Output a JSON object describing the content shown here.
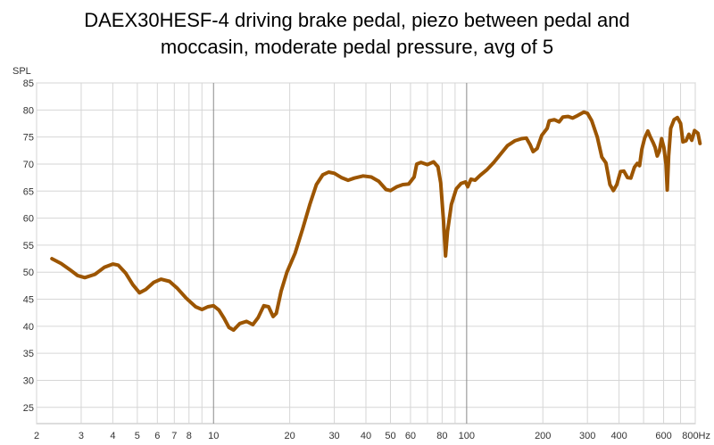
{
  "chart_data": {
    "type": "line",
    "title": "DAEX30HESF-4 driving brake pedal, piezo between pedal and\nmoccasin, moderate pedal pressure, avg of 5",
    "xlabel": "",
    "ylabel": "SPL",
    "x_scale": "log",
    "xlim": [
      2,
      800
    ],
    "ylim": [
      22,
      85
    ],
    "y_ticks": [
      25,
      30,
      35,
      40,
      45,
      50,
      55,
      60,
      65,
      70,
      75,
      80,
      85
    ],
    "x_ticks": [
      {
        "value": 2,
        "label": "2"
      },
      {
        "value": 3,
        "label": "3"
      },
      {
        "value": 4,
        "label": "4"
      },
      {
        "value": 5,
        "label": "5"
      },
      {
        "value": 6,
        "label": "6"
      },
      {
        "value": 7,
        "label": "7"
      },
      {
        "value": 8,
        "label": "8"
      },
      {
        "value": 10,
        "label": "10"
      },
      {
        "value": 20,
        "label": "20"
      },
      {
        "value": 30,
        "label": "30"
      },
      {
        "value": 40,
        "label": "40"
      },
      {
        "value": 50,
        "label": "50"
      },
      {
        "value": 60,
        "label": "60"
      },
      {
        "value": 80,
        "label": "80"
      },
      {
        "value": 100,
        "label": "100"
      },
      {
        "value": 200,
        "label": "200"
      },
      {
        "value": 300,
        "label": "300"
      },
      {
        "value": 400,
        "label": "400"
      },
      {
        "value": 600,
        "label": "600"
      },
      {
        "value": 800,
        "label": "800Hz"
      }
    ],
    "grid": true,
    "line_color": "#9c5500",
    "series": [
      {
        "name": "",
        "points": [
          [
            2.3,
            52.5
          ],
          [
            2.5,
            51.6
          ],
          [
            2.7,
            50.5
          ],
          [
            2.9,
            49.4
          ],
          [
            3.1,
            49.0
          ],
          [
            3.4,
            49.6
          ],
          [
            3.7,
            50.9
          ],
          [
            4.0,
            51.5
          ],
          [
            4.2,
            51.3
          ],
          [
            4.5,
            49.8
          ],
          [
            4.8,
            47.7
          ],
          [
            5.1,
            46.2
          ],
          [
            5.4,
            46.8
          ],
          [
            5.8,
            48.1
          ],
          [
            6.2,
            48.7
          ],
          [
            6.7,
            48.3
          ],
          [
            7.2,
            47.0
          ],
          [
            7.8,
            45.2
          ],
          [
            8.5,
            43.6
          ],
          [
            9.0,
            43.1
          ],
          [
            9.5,
            43.6
          ],
          [
            10.0,
            43.8
          ],
          [
            10.5,
            43.0
          ],
          [
            11.0,
            41.5
          ],
          [
            11.5,
            39.8
          ],
          [
            12.0,
            39.3
          ],
          [
            12.7,
            40.5
          ],
          [
            13.5,
            40.9
          ],
          [
            14.3,
            40.3
          ],
          [
            15.0,
            41.6
          ],
          [
            15.8,
            43.8
          ],
          [
            16.5,
            43.6
          ],
          [
            17.2,
            41.8
          ],
          [
            17.7,
            42.4
          ],
          [
            18.5,
            46.5
          ],
          [
            19.5,
            50.0
          ],
          [
            21.0,
            53.5
          ],
          [
            22.5,
            58.0
          ],
          [
            24.0,
            62.5
          ],
          [
            25.5,
            66.2
          ],
          [
            27.0,
            68.0
          ],
          [
            28.5,
            68.5
          ],
          [
            30.0,
            68.3
          ],
          [
            32.0,
            67.5
          ],
          [
            34.0,
            67.0
          ],
          [
            36.0,
            67.4
          ],
          [
            39.0,
            67.8
          ],
          [
            42.0,
            67.6
          ],
          [
            45.0,
            66.8
          ],
          [
            48.0,
            65.3
          ],
          [
            50.0,
            65.1
          ],
          [
            53.0,
            65.8
          ],
          [
            56.0,
            66.2
          ],
          [
            59.0,
            66.3
          ],
          [
            62.0,
            67.6
          ],
          [
            63.5,
            70.0
          ],
          [
            66.0,
            70.3
          ],
          [
            70.0,
            69.9
          ],
          [
            74.0,
            70.4
          ],
          [
            77.0,
            69.5
          ],
          [
            79.0,
            66.5
          ],
          [
            81.0,
            59.5
          ],
          [
            82.5,
            53.0
          ],
          [
            84.0,
            57.5
          ],
          [
            87.0,
            62.5
          ],
          [
            91.0,
            65.4
          ],
          [
            95.0,
            66.4
          ],
          [
            99.0,
            66.7
          ],
          [
            101.0,
            65.8
          ],
          [
            104.0,
            67.2
          ],
          [
            108.0,
            67.0
          ],
          [
            113.0,
            67.9
          ],
          [
            120.0,
            68.9
          ],
          [
            128.0,
            70.3
          ],
          [
            136.0,
            71.8
          ],
          [
            145.0,
            73.4
          ],
          [
            155.0,
            74.3
          ],
          [
            165.0,
            74.7
          ],
          [
            172.0,
            74.8
          ],
          [
            178.0,
            73.6
          ],
          [
            183.0,
            72.3
          ],
          [
            190.0,
            72.9
          ],
          [
            198.0,
            75.3
          ],
          [
            208.0,
            76.6
          ],
          [
            212.0,
            78.0
          ],
          [
            222.0,
            78.2
          ],
          [
            232.0,
            77.8
          ],
          [
            240.0,
            78.7
          ],
          [
            252.0,
            78.8
          ],
          [
            262.0,
            78.5
          ],
          [
            275.0,
            79.0
          ],
          [
            290.0,
            79.6
          ],
          [
            300.0,
            79.4
          ],
          [
            312.0,
            78.0
          ],
          [
            328.0,
            75.0
          ],
          [
            342.0,
            71.3
          ],
          [
            355.0,
            70.2
          ],
          [
            368.0,
            66.2
          ],
          [
            380.0,
            65.1
          ],
          [
            392.0,
            66.2
          ],
          [
            405.0,
            68.6
          ],
          [
            418.0,
            68.7
          ],
          [
            432.0,
            67.5
          ],
          [
            445.0,
            67.4
          ],
          [
            460.0,
            69.4
          ],
          [
            472.0,
            70.1
          ],
          [
            482.0,
            69.7
          ],
          [
            492.0,
            72.7
          ],
          [
            505.0,
            74.8
          ],
          [
            520.0,
            76.1
          ],
          [
            532.0,
            75.0
          ],
          [
            545.0,
            74.0
          ],
          [
            555.0,
            73.1
          ],
          [
            566.0,
            71.5
          ],
          [
            577.0,
            72.4
          ],
          [
            589.0,
            74.7
          ],
          [
            601.0,
            73.1
          ],
          [
            613.0,
            70.0
          ],
          [
            620.0,
            65.2
          ],
          [
            628.0,
            71.5
          ],
          [
            640.0,
            76.6
          ],
          [
            660.0,
            78.2
          ],
          [
            680.0,
            78.6
          ],
          [
            700.0,
            77.5
          ],
          [
            715.0,
            74.1
          ],
          [
            735.0,
            74.3
          ],
          [
            755.0,
            75.5
          ],
          [
            775.0,
            74.4
          ],
          [
            795.0,
            76.2
          ],
          [
            820.0,
            75.7
          ],
          [
            835.0,
            73.8
          ]
        ]
      }
    ]
  }
}
